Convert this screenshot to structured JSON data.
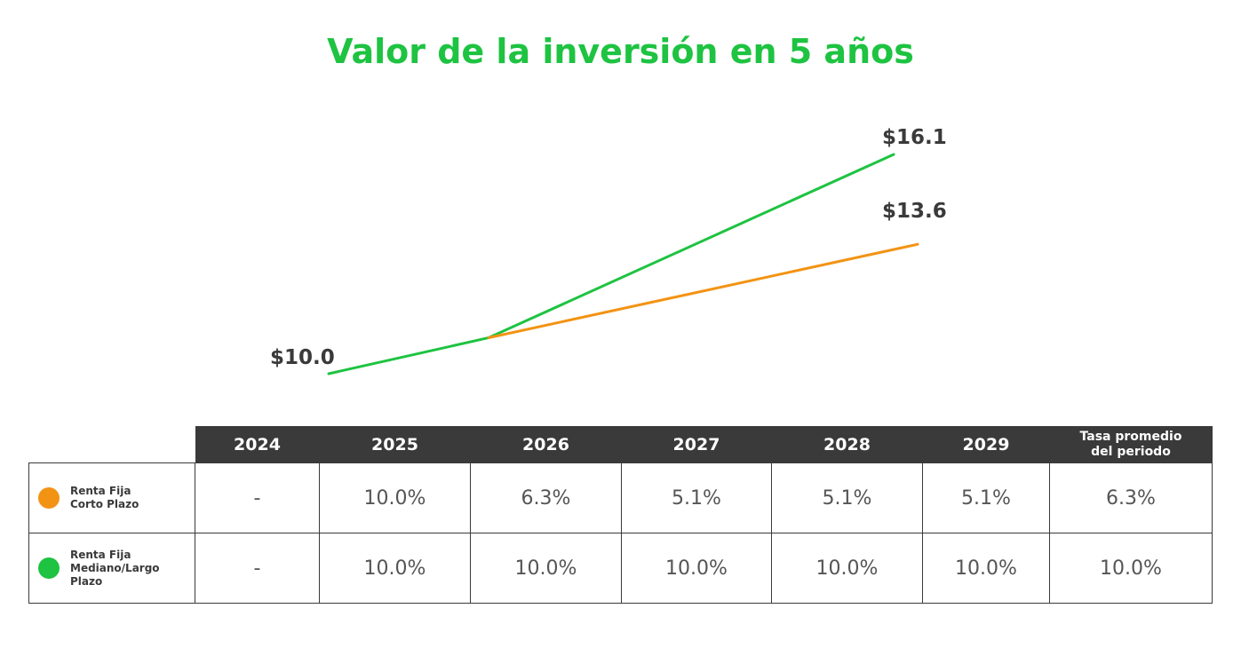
{
  "title": "Valor de la inversión en 5 años",
  "colors": {
    "title": "#1ec341",
    "orange": "#f39314",
    "green": "#1ec341",
    "header_bg": "#3a3a3a"
  },
  "chart_data": {
    "type": "line",
    "title": "Valor de la inversión en 5 años",
    "x": [
      2024,
      2025,
      2029
    ],
    "series": [
      {
        "name": "Renta Fija Corto Plazo",
        "color": "#f39314",
        "points": [
          [
            2025,
            11.0
          ],
          [
            2029,
            13.6
          ]
        ]
      },
      {
        "name": "Renta Fija Mediano/Largo Plazo",
        "color": "#1ec341",
        "points": [
          [
            2024,
            10.0
          ],
          [
            2025,
            11.0
          ],
          [
            2029,
            16.1
          ]
        ]
      }
    ],
    "value_labels": [
      {
        "text": "$10.0",
        "x": 2024,
        "y": 10.0
      },
      {
        "text": "$16.1",
        "x": 2029,
        "y": 16.1
      },
      {
        "text": "$13.6",
        "x": 2029,
        "y": 13.6
      }
    ],
    "grid": false
  },
  "table": {
    "headers": [
      "2024",
      "2025",
      "2026",
      "2027",
      "2028",
      "2029"
    ],
    "avg_header_line1": "Tasa promedio",
    "avg_header_line2": "del periodo",
    "rows": [
      {
        "label1": "Renta Fija",
        "label2": "Corto Plazo",
        "color": "#f39314",
        "cells": [
          "-",
          "10.0%",
          "6.3%",
          "5.1%",
          "5.1%",
          "5.1%",
          "6.3%"
        ]
      },
      {
        "label1": "Renta Fija",
        "label2": "Mediano/Largo Plazo",
        "color": "#1ec341",
        "cells": [
          "-",
          "10.0%",
          "10.0%",
          "10.0%",
          "10.0%",
          "10.0%",
          "10.0%"
        ]
      }
    ]
  }
}
